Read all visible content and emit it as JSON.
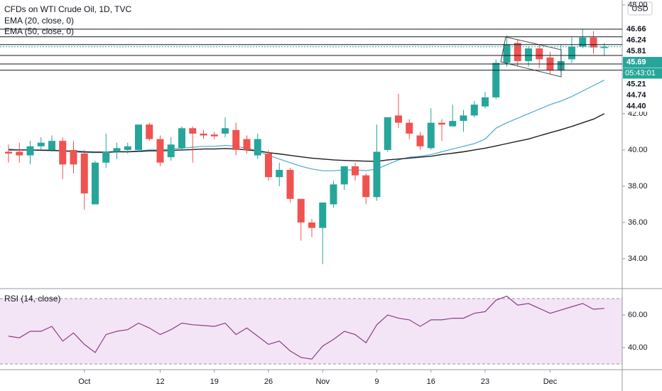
{
  "chart_data": [
    {
      "type": "candlestick",
      "title": "CFDs on WTI Crude Oil, 1D, TVC",
      "currency": "USD",
      "categories": [
        null,
        null,
        null,
        null,
        null,
        null,
        null,
        "Oct",
        null,
        null,
        null,
        null,
        null,
        null,
        "12",
        null,
        null,
        null,
        null,
        "19",
        null,
        null,
        null,
        null,
        "26",
        null,
        null,
        null,
        null,
        "Nov",
        null,
        null,
        null,
        null,
        "9",
        null,
        null,
        null,
        null,
        "16",
        null,
        null,
        null,
        null,
        "23",
        null,
        null,
        null,
        null,
        null,
        "Dec",
        null,
        null,
        null,
        null,
        null
      ],
      "open": [
        39.9,
        39.9,
        39.7,
        40.2,
        40.0,
        40.5,
        40.0,
        39.8,
        37.0,
        39.3,
        39.9,
        40.0,
        40.0,
        41.4,
        40.6,
        39.6,
        40.1,
        41.2,
        40.9,
        40.85,
        40.9,
        41.1,
        40.6,
        39.7,
        39.8,
        38.5,
        38.9,
        37.3,
        36.0,
        35.7,
        37.0,
        38.1,
        39.1,
        38.6,
        37.4,
        40.0,
        41.9,
        41.5,
        40.8,
        40.1,
        41.5,
        41.3,
        41.6,
        41.9,
        42.4,
        42.9,
        44.8,
        45.9,
        44.9,
        45.6,
        45.1,
        44.4,
        45.0,
        45.7,
        46.2,
        45.62
      ],
      "high": [
        40.3,
        40.4,
        40.5,
        40.7,
        40.8,
        40.7,
        40.5,
        40.0,
        39.4,
        40.9,
        40.4,
        40.4,
        41.4,
        41.5,
        40.8,
        40.7,
        41.3,
        41.3,
        41.1,
        41.0,
        41.8,
        41.5,
        40.8,
        40.9,
        40.0,
        39.3,
        39.0,
        37.3,
        36.2,
        37.1,
        38.3,
        39.1,
        39.3,
        38.7,
        41.4,
        41.8,
        43.1,
        41.7,
        41.0,
        42.3,
        41.7,
        42.5,
        42.2,
        42.7,
        43.2,
        45.0,
        46.3,
        46.1,
        45.7,
        45.8,
        45.4,
        45.8,
        46.2,
        46.66,
        46.55,
        45.9
      ],
      "low": [
        39.3,
        39.3,
        39.2,
        40.0,
        39.9,
        38.4,
        38.7,
        36.7,
        37.0,
        39.0,
        39.5,
        39.8,
        39.9,
        40.5,
        39.1,
        39.4,
        40.0,
        39.3,
        40.6,
        40.6,
        40.7,
        39.7,
        39.8,
        39.5,
        38.3,
        38.0,
        37.1,
        35.0,
        35.2,
        33.7,
        36.8,
        37.8,
        38.3,
        37.0,
        37.2,
        39.9,
        41.2,
        40.6,
        40.0,
        40.0,
        40.5,
        41.3,
        41.0,
        41.8,
        42.3,
        42.8,
        44.6,
        44.6,
        44.6,
        44.5,
        44.2,
        44.3,
        44.8,
        45.6,
        45.3,
        45.2
      ],
      "close": [
        39.8,
        39.7,
        40.2,
        40.4,
        40.5,
        39.2,
        39.2,
        37.6,
        39.3,
        39.9,
        40.1,
        40.2,
        41.4,
        40.6,
        39.3,
        40.3,
        41.2,
        40.9,
        40.8,
        40.75,
        41.2,
        40.0,
        40.0,
        40.6,
        38.5,
        38.9,
        37.3,
        36.0,
        35.7,
        37.1,
        38.1,
        39.1,
        38.6,
        37.4,
        39.9,
        41.8,
        41.5,
        40.9,
        40.2,
        41.5,
        41.4,
        41.6,
        41.9,
        42.5,
        42.9,
        44.8,
        45.8,
        44.9,
        45.6,
        45.0,
        44.4,
        44.9,
        45.7,
        46.2,
        45.65,
        45.69
      ],
      "up_color": "#26a69a",
      "down_color": "#ef5350",
      "series": [
        {
          "name": "EMA (20, close, 0)",
          "color": "#4ba9d0",
          "values": [
            40.05,
            40.0,
            40.0,
            40.0,
            40.0,
            39.95,
            39.9,
            39.85,
            39.85,
            39.85,
            39.9,
            39.9,
            39.95,
            40.0,
            40.0,
            40.05,
            40.1,
            40.15,
            40.2,
            40.2,
            40.25,
            40.2,
            40.1,
            39.95,
            39.7,
            39.5,
            39.3,
            39.1,
            38.95,
            38.85,
            38.85,
            38.9,
            38.9,
            38.85,
            38.95,
            39.2,
            39.45,
            39.6,
            39.65,
            39.75,
            39.9,
            40.05,
            40.2,
            40.35,
            40.6,
            41.2,
            41.5,
            41.75,
            42.0,
            42.25,
            42.5,
            42.7,
            42.95,
            43.25,
            43.55,
            43.85
          ]
        },
        {
          "name": "EMA (50, close, 0)",
          "color": "#1e1e1e",
          "values": [
            40.0,
            40.0,
            40.0,
            39.98,
            39.97,
            39.95,
            39.93,
            39.9,
            39.88,
            39.88,
            39.9,
            39.9,
            39.92,
            39.95,
            39.95,
            39.97,
            40.0,
            40.02,
            40.05,
            40.05,
            40.08,
            40.05,
            40.0,
            39.95,
            39.85,
            39.78,
            39.7,
            39.62,
            39.55,
            39.5,
            39.45,
            39.42,
            39.4,
            39.38,
            39.37,
            39.45,
            39.5,
            39.55,
            39.6,
            39.65,
            39.75,
            39.82,
            39.9,
            40.0,
            40.1,
            40.22,
            40.35,
            40.48,
            40.6,
            40.78,
            40.95,
            41.12,
            41.3,
            41.5,
            41.7,
            42.0
          ]
        }
      ],
      "levels": {
        "values": [
          46.66,
          46.24,
          45.81,
          45.21,
          44.74,
          44.4
        ],
        "value_labels": [
          "46.66",
          "46.24",
          "45.81",
          "45.21",
          "44.74",
          "44.40"
        ]
      },
      "last_price": 45.69,
      "countdown": "05:43:01",
      "ylim": [
        32.39,
        48.27
      ],
      "yticks": [
        {
          "value": 34,
          "label": "34.00"
        },
        {
          "value": 36,
          "label": "36.00"
        },
        {
          "value": 38,
          "label": "38.00"
        },
        {
          "value": 40,
          "label": "40.00"
        },
        {
          "value": 42,
          "label": "42.00"
        },
        {
          "value": 48,
          "label": "48.00"
        }
      ]
    },
    {
      "type": "line",
      "title": "RSI (14, close)",
      "color": "#8e3d8a",
      "band": [
        30,
        70
      ],
      "band_color": "#f3e5f5",
      "values": [
        47,
        46,
        50,
        50,
        53,
        44,
        49,
        42,
        37,
        48,
        50,
        51,
        55,
        52,
        48,
        51,
        55,
        54,
        53.5,
        53,
        55,
        48,
        52,
        47,
        42,
        44,
        38,
        34,
        33,
        41,
        45,
        50,
        48,
        43,
        54,
        60,
        58,
        57,
        53,
        57,
        57,
        58,
        58,
        61,
        62,
        69,
        71.5,
        66,
        67,
        64,
        61,
        63,
        65,
        67,
        63.5,
        64
      ],
      "ylim": [
        26.5,
        76.1
      ],
      "yticks": [
        {
          "value": 40,
          "label": "40.00"
        },
        {
          "value": 60,
          "label": "60.00"
        }
      ]
    }
  ]
}
